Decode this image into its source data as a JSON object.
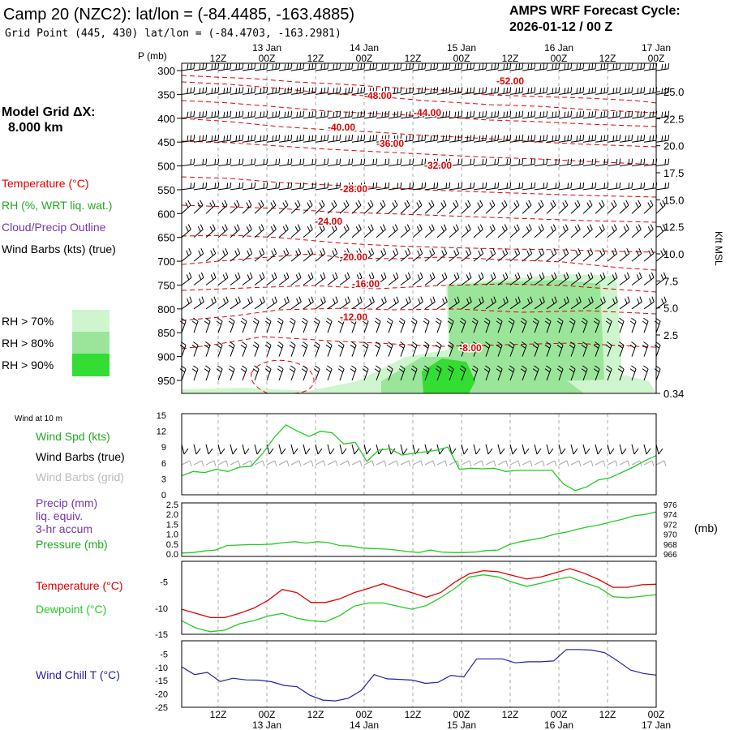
{
  "header": {
    "title": "Camp 20 (NZC2):  lat/lon = (-84.4485, -163.4885)",
    "grid_point": "Grid Point (445, 430) lat/lon = (-84.4703, -163.2981)",
    "cycle_label": "AMPS WRF Forecast Cycle:",
    "cycle_value": "2026-01-12 / 00  Z"
  },
  "sidebar": {
    "model_grid_label": "Model Grid ΔX:",
    "model_grid_value": "8.000 km",
    "legend_temperature": "Temperature (°C)",
    "legend_rh": "RH (%, WRT liq. wat.)",
    "legend_cloud": "Cloud/Precip Outline",
    "legend_wind": "Wind Barbs (kts) (true)",
    "rh70": "RH > 70%",
    "rh80": "RH > 80%",
    "rh90": "RH > 90%",
    "wind10_label": "Wind at 10 m",
    "wind_spd": "Wind Spd (kts)",
    "wind_barbs_true": "Wind Barbs (true)",
    "wind_barbs_grid": "Wind Barbs (grid)",
    "precip1": "Precip (mm)",
    "precip2": "liq. equiv.",
    "precip3": "3-hr accum",
    "pressure": "Pressure (mb)",
    "pressure_unit": "(mb)",
    "temperature": "Temperature (°C)",
    "dewpoint": "Dewpoint (°C)",
    "windchill": "Wind Chill T (°C)"
  },
  "colors": {
    "temp": "#e00000",
    "rh_green": "#22aa22",
    "cloud": "#7733aa",
    "dew": "#22cc22",
    "windchill": "#2222aa",
    "rh70": "#cff5cf",
    "rh80": "#9be59b",
    "rh90": "#33dd33"
  },
  "chart_data": {
    "type": "line",
    "time_axis": {
      "top_hour_labels": [
        "12Z",
        "00Z",
        "12Z",
        "00Z",
        "12Z",
        "00Z",
        "12Z",
        "00Z",
        "12Z",
        "00Z"
      ],
      "date_labels": [
        "13 Jan",
        "14 Jan",
        "15 Jan",
        "16 Jan",
        "17 Jan"
      ],
      "bottom_hour_labels": [
        "12Z",
        "00Z",
        "12Z",
        "00Z",
        "12Z",
        "00Z",
        "12Z",
        "00Z",
        "12Z",
        "00Z"
      ],
      "range_hours": [
        3,
        120
      ],
      "step_hours": 3
    },
    "profile": {
      "pressure_label": "P (mb)",
      "pressure_levels": [
        "300",
        "350",
        "400",
        "450",
        "500",
        "550",
        "600",
        "650",
        "700",
        "750",
        "800",
        "850",
        "900",
        "950"
      ],
      "height_labels": [
        "25.0",
        "22.5",
        "20.0",
        "17.5",
        "15.0",
        "12.5",
        "10.0",
        "7.5",
        "5.0",
        "2.5",
        "0.34"
      ],
      "height_axis_label": "Kft MSL",
      "temperature_contour_labels": [
        "-52.00",
        "-48.00",
        "-44.00",
        "-40.00",
        "-36.00",
        "-32.00",
        "-28.00",
        "-24.00",
        "-20.00",
        "-16.00",
        "-12.00",
        "-8.00"
      ]
    },
    "wind10": {
      "y_ticks": [
        "15",
        "12",
        "9",
        "6",
        "3",
        "0"
      ],
      "ylim": [
        0,
        15
      ],
      "wind_speed_kts": [
        3.6,
        4.4,
        4.2,
        4.8,
        4.4,
        5.2,
        5.4,
        7.8,
        10.8,
        13.2,
        12.0,
        11.0,
        12.0,
        11.7,
        9.6,
        9.9,
        6.3,
        8.4,
        8.7,
        7.5,
        7.8,
        8.1,
        8.4,
        9.0,
        4.8,
        5.0,
        4.9,
        5.0,
        4.4,
        4.6,
        4.6,
        4.6,
        4.6,
        2.0,
        0.8,
        1.5,
        2.8,
        3.2,
        4.2,
        5.2,
        6.4,
        7.4
      ]
    },
    "precip_pressure": {
      "precip_ticks": [
        "2.5",
        "2.0",
        "1.5",
        "1.0",
        "0.5",
        "0.0"
      ],
      "precip_lim": [
        0,
        2.5
      ],
      "pressure_ticks": [
        "976",
        "974",
        "972",
        "970",
        "968",
        "966"
      ],
      "pressure_lim": [
        966,
        976
      ],
      "pressure_mb": [
        966.2,
        966.3,
        966.6,
        966.8,
        967.7,
        967.8,
        967.9,
        967.9,
        968.0,
        968.3,
        968.5,
        968.2,
        968.5,
        968.3,
        967.7,
        967.6,
        967.2,
        967.1,
        967.0,
        966.8,
        966.5,
        966.3,
        966.8,
        966.4,
        966.3,
        966.3,
        966.4,
        966.7,
        966.8,
        967.9,
        968.5,
        968.9,
        969.3,
        970.0,
        970.4,
        971.0,
        971.5,
        971.9,
        972.5,
        973.0,
        973.7,
        974.0,
        974.5
      ]
    },
    "temp_dew": {
      "y_ticks": [
        "-5",
        "-10",
        "-15"
      ],
      "ylim": [
        -15,
        -1
      ],
      "temperature_c": [
        -10.2,
        -11.0,
        -11.8,
        -11.8,
        -11.0,
        -10.0,
        -8.5,
        -6.4,
        -7.0,
        -8.9,
        -8.9,
        -8.2,
        -7.0,
        -6.2,
        -5.3,
        -6.2,
        -7.0,
        -7.9,
        -7.0,
        -5.0,
        -3.4,
        -2.8,
        -3.0,
        -3.7,
        -4.4,
        -4.0,
        -3.2,
        -2.4,
        -3.3,
        -4.5,
        -6.0,
        -6.0,
        -5.5,
        -5.4
      ],
      "dewpoint_c": [
        -12.4,
        -13.8,
        -14.5,
        -14.2,
        -13.0,
        -12.4,
        -11.5,
        -11.0,
        -11.9,
        -12.4,
        -12.6,
        -11.4,
        -9.6,
        -9.0,
        -9.0,
        -9.6,
        -10.2,
        -9.5,
        -8.0,
        -6.2,
        -4.0,
        -3.6,
        -4.0,
        -5.0,
        -5.8,
        -5.2,
        -4.5,
        -4.0,
        -5.1,
        -6.0,
        -7.8,
        -8.0,
        -7.7,
        -7.4
      ]
    },
    "windchill": {
      "y_ticks": [
        "-5",
        "-10",
        "-15",
        "-20",
        "-25"
      ],
      "ylim": [
        -25,
        0
      ],
      "wind_chill_c": [
        -9.8,
        -12.7,
        -11.9,
        -15.3,
        -14.1,
        -14.7,
        -14.8,
        -15.4,
        -16.8,
        -17.3,
        -20.5,
        -22.3,
        -22.6,
        -21.6,
        -18.7,
        -12.7,
        -14.3,
        -14.5,
        -14.8,
        -16.0,
        -15.6,
        -13.0,
        -13.6,
        -6.8,
        -6.8,
        -6.8,
        -8.3,
        -7.9,
        -7.9,
        -7.6,
        -3.3,
        -3.3,
        -3.5,
        -4.5,
        -7.6,
        -11.0,
        -12.3,
        -12.9
      ]
    }
  }
}
